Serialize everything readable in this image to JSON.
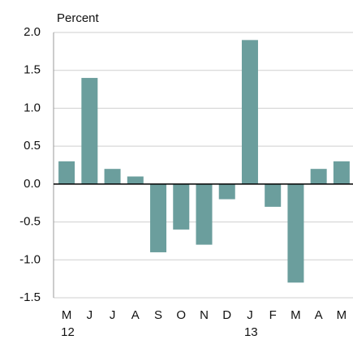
{
  "chart_data": {
    "type": "bar",
    "y_axis_label": "Percent",
    "categories": [
      "M",
      "J",
      "J",
      "A",
      "S",
      "O",
      "N",
      "D",
      "J",
      "F",
      "M",
      "A",
      "M"
    ],
    "year_labels": [
      "12",
      null,
      null,
      null,
      null,
      null,
      null,
      null,
      "13",
      null,
      null,
      null,
      null
    ],
    "values": [
      0.3,
      1.4,
      0.2,
      0.1,
      -0.9,
      -0.6,
      -0.8,
      -0.2,
      1.9,
      -0.3,
      -1.3,
      0.2,
      0.3
    ],
    "color": "#6b9e9d",
    "ylim": [
      -1.5,
      2.0
    ],
    "yticks": [
      {
        "value": -1.5,
        "label": "-1.5"
      },
      {
        "value": -1.0,
        "label": "-1.0"
      },
      {
        "value": -0.5,
        "label": "-0.5"
      },
      {
        "value": 0,
        "label": "0.0"
      },
      {
        "value": 0.5,
        "label": "0.5"
      },
      {
        "value": 1.0,
        "label": "1.0"
      },
      {
        "value": 1.5,
        "label": "1.5"
      },
      {
        "value": 2.0,
        "label": "2.0"
      }
    ],
    "grid": true
  }
}
